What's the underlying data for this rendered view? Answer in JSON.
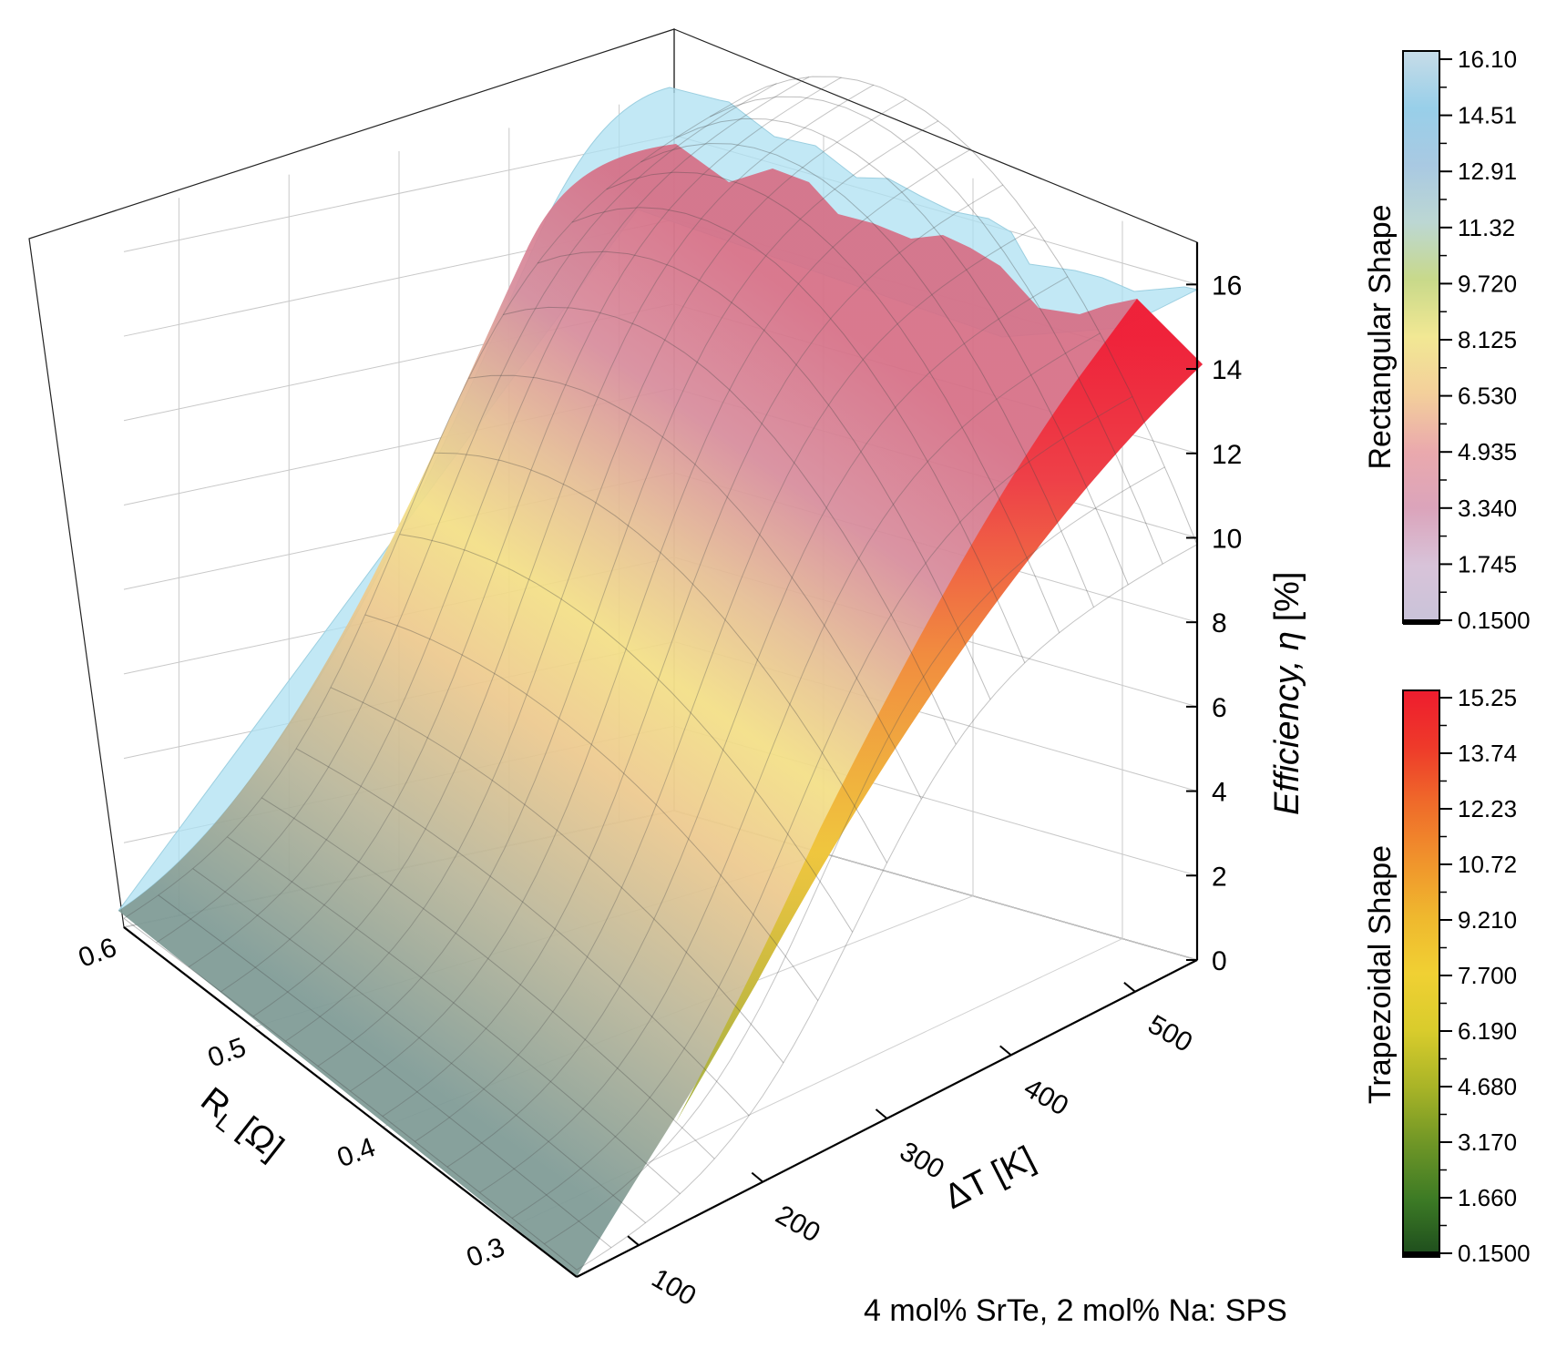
{
  "chart_data": {
    "type": "surface3d",
    "caption": "4 mol% SrTe, 2 mol% Na: SPS",
    "axes": {
      "x": {
        "label": "Rₗ [Ω]",
        "label_base": "R",
        "label_sub": "L",
        "label_unit": "[Ω]",
        "range": [
          0.25,
          0.6
        ],
        "ticks": [
          "0.3",
          "0.4",
          "0.5",
          "0.6"
        ],
        "tick_values": [
          0.3,
          0.4,
          0.5,
          0.6
        ]
      },
      "y": {
        "label": "ΔT [K]",
        "range": [
          50,
          550
        ],
        "ticks": [
          "100",
          "200",
          "300",
          "400",
          "500"
        ],
        "tick_values": [
          100,
          200,
          300,
          400,
          500
        ]
      },
      "z": {
        "label": "Efficiency, η [%]",
        "label_italic": "Efficiency, η",
        "label_unit": "[%]",
        "range": [
          0,
          17
        ],
        "ticks": [
          "0",
          "2",
          "4",
          "6",
          "8",
          "10",
          "12",
          "14",
          "16"
        ],
        "tick_values": [
          0,
          2,
          4,
          6,
          8,
          10,
          12,
          14,
          16
        ]
      }
    },
    "series": [
      {
        "name": "Rectangular Shape",
        "peak_efficiency": 16.1,
        "colorbar": {
          "title": "Rectangular Shape",
          "labels": [
            "16.10",
            "14.51",
            "12.91",
            "11.32",
            "9.720",
            "8.125",
            "6.530",
            "4.935",
            "3.340",
            "1.745",
            "0.1500"
          ],
          "colors": [
            "#c7dce8",
            "#98cfe9",
            "#a9c9e2",
            "#bcd7d3",
            "#c8d98a",
            "#f2e894",
            "#f3cf9b",
            "#eaa9ad",
            "#dba4bb",
            "#d8c3d9",
            "#c9c3d9"
          ]
        }
      },
      {
        "name": "Trapezoidal Shape",
        "peak_efficiency": 15.25,
        "colorbar": {
          "title": "Trapezoidal Shape",
          "labels": [
            "15.25",
            "13.74",
            "12.23",
            "10.72",
            "9.210",
            "7.700",
            "6.190",
            "4.680",
            "3.170",
            "1.660",
            "0.1500"
          ],
          "colors": [
            "#ee1c2e",
            "#ee3a2a",
            "#ef6b2a",
            "#f0932c",
            "#efb82e",
            "#f0d033",
            "#d9cc2c",
            "#a9b427",
            "#6f9626",
            "#3c7a25",
            "#1d4c1d"
          ]
        }
      }
    ]
  }
}
